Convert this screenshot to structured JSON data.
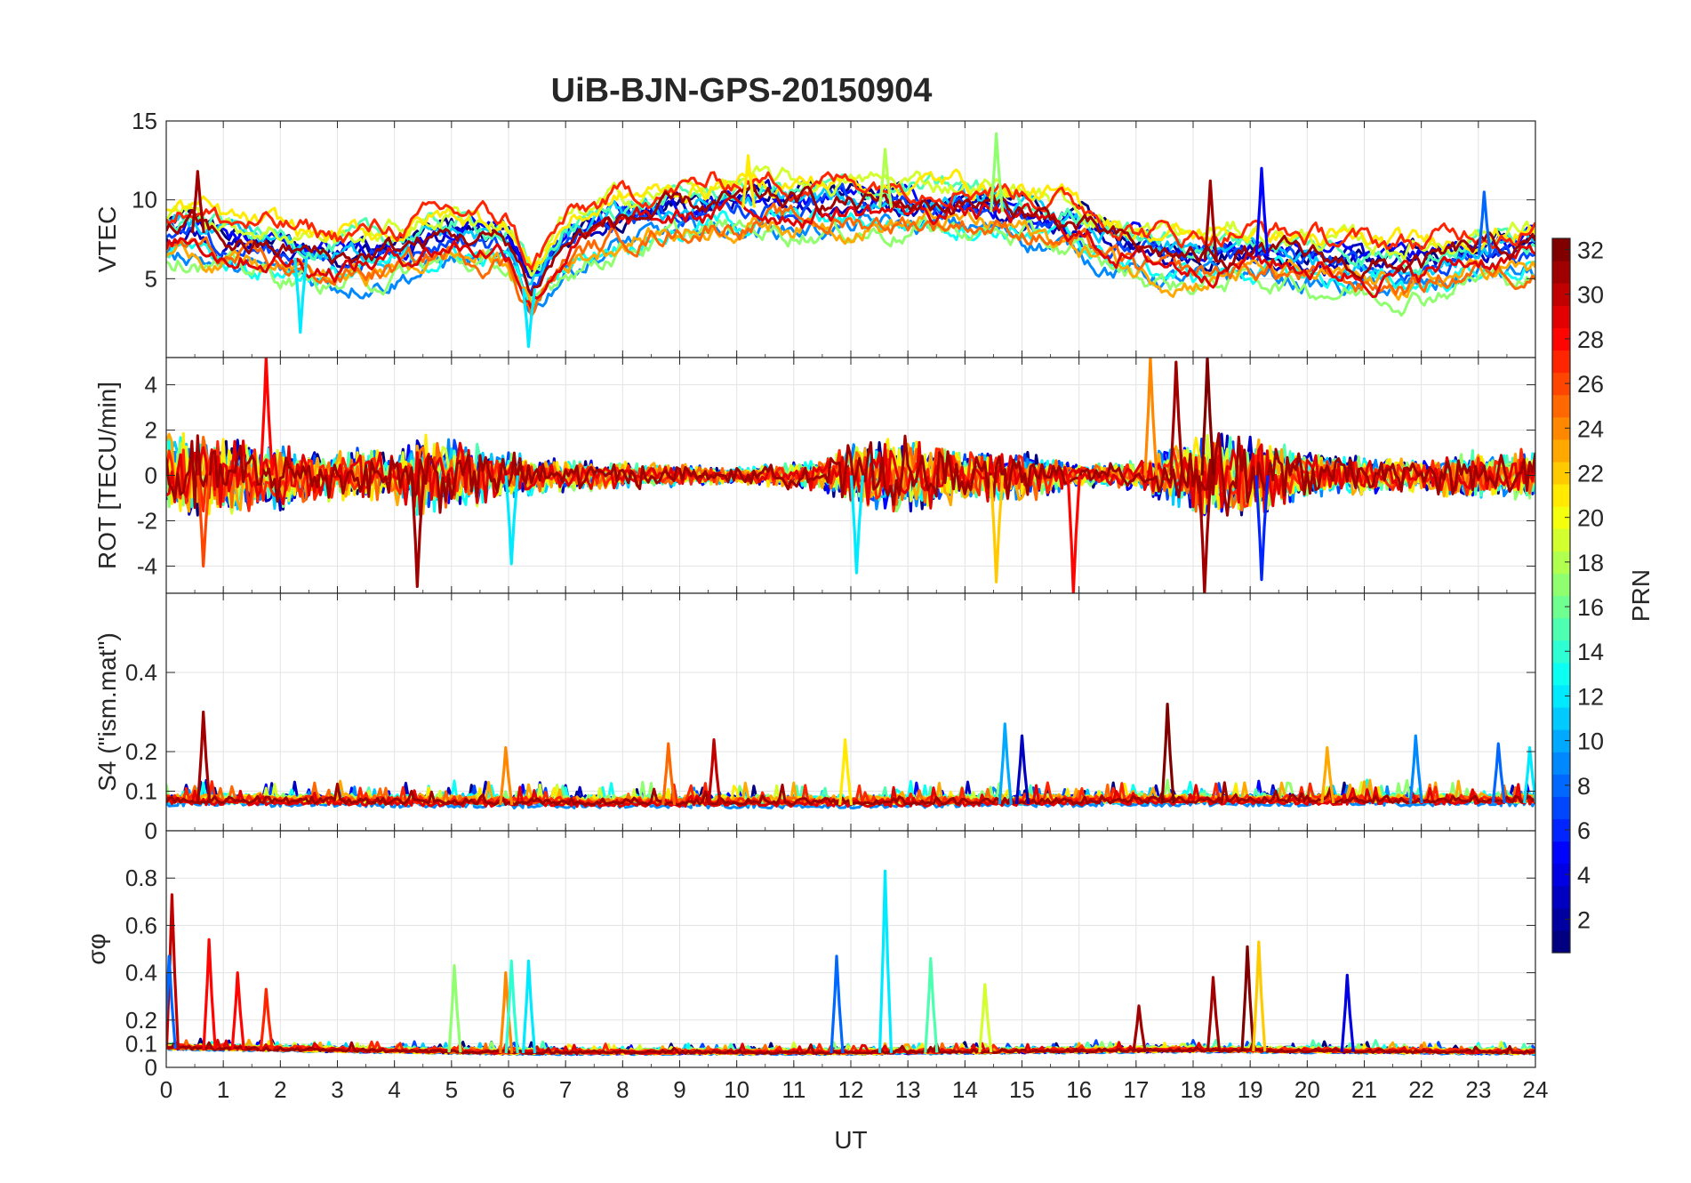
{
  "chart_data": {
    "type": "line",
    "title": "UiB-BJN-GPS-20150904",
    "xlabel": "UT",
    "xlim": [
      0,
      24
    ],
    "x_ticks": [
      "0",
      "1",
      "2",
      "3",
      "4",
      "5",
      "6",
      "7",
      "8",
      "9",
      "10",
      "11",
      "12",
      "13",
      "14",
      "15",
      "16",
      "17",
      "18",
      "19",
      "20",
      "21",
      "22",
      "23",
      "24"
    ],
    "grid": true,
    "panels": [
      {
        "id": "vtec",
        "ylabel": "VTEC",
        "ylim": [
          0,
          15
        ],
        "y_ticks": [
          {
            "v": 5,
            "t": "5"
          },
          {
            "v": 10,
            "t": "10"
          },
          {
            "v": 15,
            "t": "15"
          }
        ],
        "kind": "level",
        "base": [
          [
            0,
            7.5
          ],
          [
            0.5,
            8
          ],
          [
            1,
            7
          ],
          [
            2,
            6.5
          ],
          [
            3,
            6
          ],
          [
            4,
            6.5
          ],
          [
            5,
            7.5
          ],
          [
            6,
            7
          ],
          [
            6.4,
            4
          ],
          [
            7,
            7
          ],
          [
            8,
            8.5
          ],
          [
            9,
            9
          ],
          [
            10,
            9.5
          ],
          [
            11,
            9.5
          ],
          [
            12,
            9.5
          ],
          [
            13,
            9.5
          ],
          [
            14,
            9.5
          ],
          [
            15,
            9
          ],
          [
            16,
            8
          ],
          [
            17,
            6.5
          ],
          [
            18,
            6
          ],
          [
            19,
            6.5
          ],
          [
            20,
            6
          ],
          [
            21,
            5.5
          ],
          [
            22,
            5.5
          ],
          [
            23,
            6.5
          ],
          [
            24,
            6.5
          ]
        ],
        "spread": 2.2,
        "noise": 0.9,
        "spikes": [
          {
            "x": 0.55,
            "y": 11.8,
            "prn": 31
          },
          {
            "x": 2.35,
            "y": 1.6,
            "prn": 12
          },
          {
            "x": 6.35,
            "y": 0.7,
            "prn": 12
          },
          {
            "x": 12.6,
            "y": 13.2,
            "prn": 18
          },
          {
            "x": 14.55,
            "y": 14.2,
            "prn": 17
          },
          {
            "x": 10.2,
            "y": 12.8,
            "prn": 21
          },
          {
            "x": 19.2,
            "y": 12,
            "prn": 5
          },
          {
            "x": 18.3,
            "y": 11.2,
            "prn": 31
          },
          {
            "x": 23.1,
            "y": 10.5,
            "prn": 8
          }
        ]
      },
      {
        "id": "rot",
        "ylabel": "ROT [TECU/min]",
        "ylim": [
          -5.2,
          5.2
        ],
        "y_ticks": [
          {
            "v": -4,
            "t": "-4"
          },
          {
            "v": -2,
            "t": "-2"
          },
          {
            "v": 0,
            "t": "0"
          },
          {
            "v": 2,
            "t": "2"
          },
          {
            "v": 4,
            "t": "4"
          }
        ],
        "kind": "symmetric",
        "base": [
          [
            0,
            1.6
          ],
          [
            1,
            1.4
          ],
          [
            2,
            1.2
          ],
          [
            3,
            0.9
          ],
          [
            4,
            1
          ],
          [
            4.5,
            1.6
          ],
          [
            5.5,
            1.1
          ],
          [
            6.5,
            0.7
          ],
          [
            8,
            0.5
          ],
          [
            10,
            0.3
          ],
          [
            11.5,
            0.6
          ],
          [
            12,
            1.2
          ],
          [
            13,
            1.4
          ],
          [
            14,
            0.9
          ],
          [
            15,
            1
          ],
          [
            16,
            0.4
          ],
          [
            17,
            0.5
          ],
          [
            18,
            1.5
          ],
          [
            19,
            1.6
          ],
          [
            20,
            0.9
          ],
          [
            21,
            0.7
          ],
          [
            22,
            0.6
          ],
          [
            23,
            0.9
          ],
          [
            24,
            0.9
          ]
        ],
        "spread": 0,
        "noise": 1,
        "spikes": [
          {
            "x": 1.75,
            "y": 5.2,
            "prn": 28
          },
          {
            "x": 4.4,
            "y": -4.9,
            "prn": 31
          },
          {
            "x": 0.65,
            "y": -4,
            "prn": 26
          },
          {
            "x": 14.55,
            "y": -4.7,
            "prn": 22
          },
          {
            "x": 15.9,
            "y": -5.2,
            "prn": 28
          },
          {
            "x": 17.25,
            "y": 5.2,
            "prn": 24
          },
          {
            "x": 17.7,
            "y": 5,
            "prn": 31
          },
          {
            "x": 18.25,
            "y": 5.2,
            "prn": 32
          },
          {
            "x": 18.2,
            "y": -5.2,
            "prn": 31
          },
          {
            "x": 19.2,
            "y": -4.6,
            "prn": 6
          },
          {
            "x": 12.1,
            "y": -4.3,
            "prn": 12
          },
          {
            "x": 6.05,
            "y": -3.9,
            "prn": 12
          }
        ]
      },
      {
        "id": "s4",
        "ylabel": "S4 (\"ism.mat\")",
        "ylim": [
          0,
          0.6
        ],
        "y_ticks": [
          {
            "v": 0,
            "t": "0"
          },
          {
            "v": 0.1,
            "t": "0.1"
          },
          {
            "v": 0.2,
            "t": "0.2"
          },
          {
            "v": 0.4,
            "t": "0.4"
          }
        ],
        "kind": "positive",
        "base": [
          [
            0,
            0.07
          ],
          [
            6,
            0.065
          ],
          [
            12,
            0.065
          ],
          [
            18,
            0.07
          ],
          [
            24,
            0.07
          ]
        ],
        "spread": 0.02,
        "noise": 0.025,
        "spikes": [
          {
            "x": 0.65,
            "y": 0.3,
            "prn": 31
          },
          {
            "x": 14.7,
            "y": 0.27,
            "prn": 10
          },
          {
            "x": 17.55,
            "y": 0.32,
            "prn": 32
          },
          {
            "x": 21.9,
            "y": 0.24,
            "prn": 9
          },
          {
            "x": 9.6,
            "y": 0.23,
            "prn": 30
          },
          {
            "x": 11.9,
            "y": 0.23,
            "prn": 21
          },
          {
            "x": 23.35,
            "y": 0.22,
            "prn": 8
          },
          {
            "x": 23.9,
            "y": 0.21,
            "prn": 12
          },
          {
            "x": 5.95,
            "y": 0.21,
            "prn": 24
          },
          {
            "x": 8.8,
            "y": 0.22,
            "prn": 25
          },
          {
            "x": 20.35,
            "y": 0.21,
            "prn": 23
          },
          {
            "x": 15.0,
            "y": 0.24,
            "prn": 3
          }
        ]
      },
      {
        "id": "sigma",
        "ylabel": "σφ",
        "ylim": [
          0,
          1
        ],
        "y_ticks": [
          {
            "v": 0,
            "t": "0"
          },
          {
            "v": 0.1,
            "t": "0.1"
          },
          {
            "v": 0.2,
            "t": "0.2"
          },
          {
            "v": 0.4,
            "t": "0.4"
          },
          {
            "v": 0.6,
            "t": "0.6"
          },
          {
            "v": 0.8,
            "t": "0.8"
          }
        ],
        "kind": "positive",
        "base": [
          [
            0,
            0.08
          ],
          [
            6,
            0.06
          ],
          [
            12,
            0.06
          ],
          [
            18,
            0.07
          ],
          [
            24,
            0.06
          ]
        ],
        "spread": 0.015,
        "noise": 0.02,
        "spikes": [
          {
            "x": 0.1,
            "y": 0.73,
            "prn": 30
          },
          {
            "x": 0.05,
            "y": 0.47,
            "prn": 8
          },
          {
            "x": 0.75,
            "y": 0.54,
            "prn": 28
          },
          {
            "x": 1.25,
            "y": 0.4,
            "prn": 28
          },
          {
            "x": 1.75,
            "y": 0.33,
            "prn": 27
          },
          {
            "x": 5.05,
            "y": 0.43,
            "prn": 17
          },
          {
            "x": 5.95,
            "y": 0.4,
            "prn": 24
          },
          {
            "x": 6.05,
            "y": 0.45,
            "prn": 14
          },
          {
            "x": 6.35,
            "y": 0.45,
            "prn": 12
          },
          {
            "x": 11.75,
            "y": 0.47,
            "prn": 8
          },
          {
            "x": 12.6,
            "y": 0.83,
            "prn": 12
          },
          {
            "x": 13.4,
            "y": 0.46,
            "prn": 15
          },
          {
            "x": 14.35,
            "y": 0.35,
            "prn": 19
          },
          {
            "x": 18.35,
            "y": 0.38,
            "prn": 31
          },
          {
            "x": 18.95,
            "y": 0.51,
            "prn": 32
          },
          {
            "x": 19.15,
            "y": 0.53,
            "prn": 22
          },
          {
            "x": 20.7,
            "y": 0.39,
            "prn": 4
          },
          {
            "x": 17.05,
            "y": 0.26,
            "prn": 31
          }
        ]
      }
    ],
    "colorbar": {
      "label": "PRN",
      "min": 1,
      "max": 32,
      "ticks": [
        2,
        4,
        6,
        8,
        10,
        12,
        14,
        16,
        18,
        20,
        22,
        24,
        26,
        28,
        30,
        32
      ],
      "colormap": "jet"
    },
    "series_prns": [
      1,
      3,
      5,
      7,
      9,
      11,
      13,
      15,
      17,
      19,
      21,
      23,
      25,
      27,
      29,
      31
    ]
  }
}
